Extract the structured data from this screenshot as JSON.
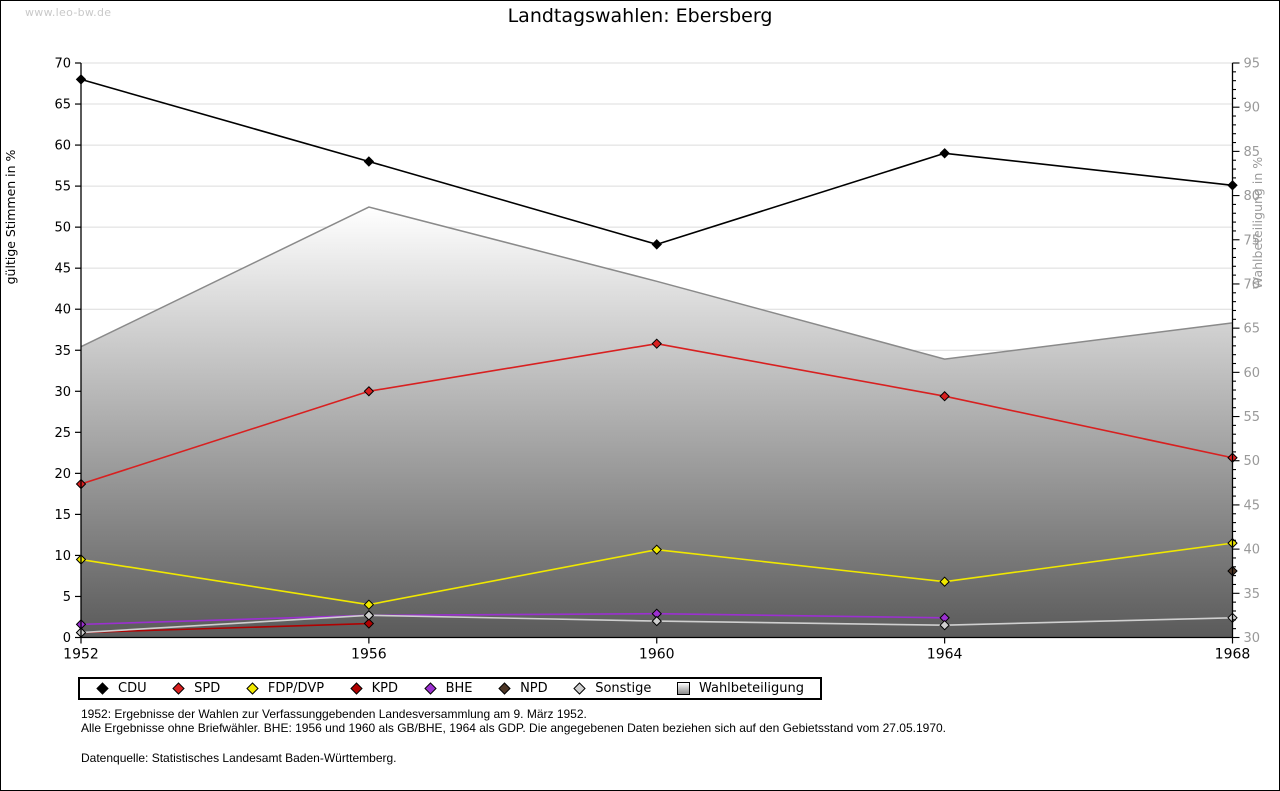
{
  "site": {
    "watermark": "www.leo-bw.de"
  },
  "chart_data": {
    "type": "line",
    "title": "Landtagswahlen: Ebersberg",
    "x": [
      "1952",
      "1956",
      "1960",
      "1964",
      "1968"
    ],
    "y_left": {
      "label": "gültige Stimmen in %",
      "min": 0,
      "max": 70,
      "tick_step": 5
    },
    "y_right": {
      "label": "Wahlbeteiligung in %",
      "min": 30,
      "max": 95,
      "tick_step": 5,
      "minor_step": 1
    },
    "grid": true,
    "legend_position": "bottom",
    "series": [
      {
        "name": "CDU",
        "color": "#000000",
        "axis": "left",
        "render": "line",
        "values": [
          68.0,
          58.0,
          47.9,
          59.0,
          55.1
        ]
      },
      {
        "name": "SPD",
        "color": "#d82020",
        "axis": "left",
        "render": "line",
        "values": [
          18.7,
          30.0,
          35.8,
          29.4,
          21.9
        ]
      },
      {
        "name": "FDP/DVP",
        "color": "#f0e800",
        "axis": "left",
        "render": "line",
        "values": [
          9.5,
          4.0,
          10.7,
          6.8,
          11.5
        ]
      },
      {
        "name": "KPD",
        "color": "#b00000",
        "axis": "left",
        "render": "line",
        "values": [
          0.6,
          1.7,
          null,
          null,
          null
        ]
      },
      {
        "name": "BHE",
        "color": "#9b30d0",
        "axis": "left",
        "render": "line",
        "values": [
          1.6,
          2.7,
          2.9,
          2.4,
          null
        ]
      },
      {
        "name": "NPD",
        "color": "#4d3626",
        "axis": "left",
        "render": "line",
        "values": [
          null,
          null,
          null,
          null,
          8.1
        ]
      },
      {
        "name": "Sonstige",
        "color": "#cfcfcf",
        "axis": "left",
        "render": "line",
        "values": [
          0.6,
          2.7,
          2.0,
          1.5,
          2.4
        ]
      },
      {
        "name": "Wahlbeteiligung",
        "color": "#8a8a8a",
        "axis": "right",
        "render": "area",
        "values": [
          62.9,
          78.7,
          70.3,
          61.5,
          65.6
        ]
      }
    ]
  },
  "footnotes": {
    "line1": "1952: Ergebnisse der Wahlen zur Verfassunggebenden Landesversammlung am 9. März 1952.",
    "line2": "Alle Ergebnisse ohne Briefwähler. BHE: 1956 und 1960 als GB/BHE, 1964 als GDP. Die angegebenen Daten beziehen sich auf den Gebietsstand vom 27.05.1970.",
    "source": "Datenquelle: Statistisches Landesamt Baden-Württemberg."
  }
}
